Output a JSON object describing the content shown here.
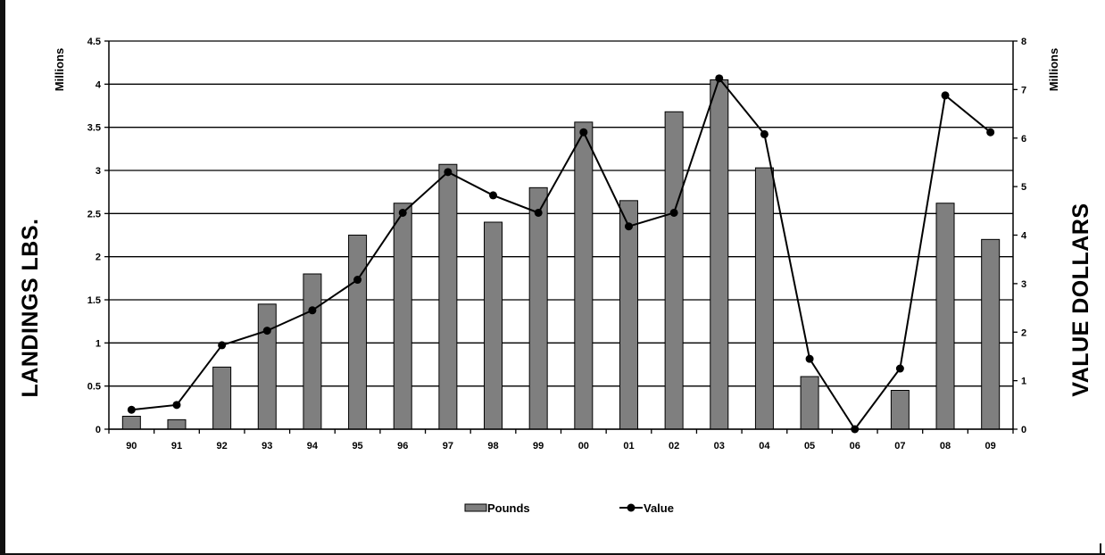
{
  "chart_data": {
    "type": "bar",
    "categories": [
      "90",
      "91",
      "92",
      "93",
      "94",
      "95",
      "96",
      "97",
      "98",
      "99",
      "00",
      "01",
      "02",
      "03",
      "04",
      "05",
      "06",
      "07",
      "08",
      "09"
    ],
    "series": [
      {
        "name": "Pounds",
        "type": "bar",
        "axis": "left",
        "color": "#7f7f7f",
        "values": [
          0.15,
          0.11,
          0.72,
          1.45,
          1.8,
          2.25,
          2.62,
          3.07,
          2.4,
          2.8,
          3.56,
          2.65,
          3.68,
          4.05,
          3.03,
          0.61,
          0.0,
          0.45,
          2.62,
          2.2
        ]
      },
      {
        "name": "Value",
        "type": "line",
        "axis": "right",
        "color": "#000000",
        "values": [
          0.4,
          0.5,
          1.73,
          2.03,
          2.45,
          3.08,
          4.46,
          5.3,
          4.82,
          4.46,
          6.12,
          4.18,
          4.46,
          7.23,
          6.08,
          1.45,
          0.0,
          1.25,
          6.88,
          6.12
        ]
      }
    ],
    "y_left": {
      "label": "LANDINGS LBS.",
      "unit": "Millions",
      "ticks": [
        "0",
        "0.5",
        "1",
        "1.5",
        "2",
        "2.5",
        "3",
        "3.5",
        "4",
        "4.5"
      ],
      "range": [
        0,
        4.5
      ]
    },
    "y_right": {
      "label": "VALUE DOLLARS",
      "unit": "Millions",
      "ticks": [
        "0",
        "1",
        "2",
        "3",
        "4",
        "5",
        "6",
        "7",
        "8"
      ],
      "range": [
        0,
        8
      ]
    },
    "grid": true,
    "legend": {
      "position": "bottom",
      "items": [
        {
          "label": "Pounds",
          "type": "bar"
        },
        {
          "label": "Value",
          "type": "line"
        }
      ]
    }
  },
  "colors": {
    "bar_fill": "#7f7f7f",
    "bar_stroke": "#000000",
    "line": "#000000",
    "grid": "#000000"
  }
}
